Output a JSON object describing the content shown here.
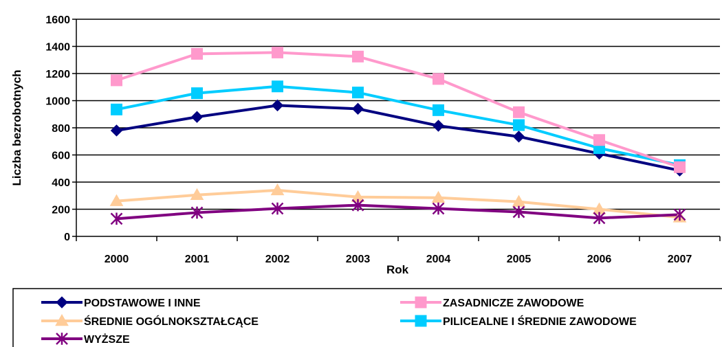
{
  "chart_data": {
    "type": "line",
    "title": "",
    "xlabel": "Rok",
    "ylabel": "Liczba bezrobotnych",
    "x": [
      "2000",
      "2001",
      "2002",
      "2003",
      "2004",
      "2005",
      "2006",
      "2007"
    ],
    "ylim": [
      0,
      1600
    ],
    "yticks": [
      0,
      200,
      400,
      600,
      800,
      1000,
      1200,
      1400,
      1600
    ],
    "grid": true,
    "legend_position": "bottom",
    "series": [
      {
        "name": "PODSTAWOWE I INNE",
        "color": "#000080",
        "marker": "diamond",
        "values": [
          780,
          880,
          965,
          940,
          815,
          735,
          610,
          485
        ]
      },
      {
        "name": "ZASADNICZE ZAWODOWE",
        "color": "#FF99CC",
        "marker": "square",
        "values": [
          1150,
          1345,
          1355,
          1325,
          1160,
          915,
          710,
          510
        ]
      },
      {
        "name": "ŚREDNIE OGÓLNOKSZTAŁCĄCE",
        "color": "#FFCC99",
        "marker": "triangle",
        "values": [
          260,
          305,
          340,
          290,
          285,
          255,
          200,
          140
        ]
      },
      {
        "name": "PILICEALNE I ŚREDNIE ZAWODOWE",
        "color": "#00CCFF",
        "marker": "square",
        "values": [
          935,
          1055,
          1105,
          1060,
          930,
          820,
          650,
          525
        ]
      },
      {
        "name": "WYŻSZE",
        "color": "#800080",
        "marker": "asterisk",
        "values": [
          130,
          175,
          205,
          230,
          205,
          180,
          135,
          160
        ]
      }
    ]
  }
}
